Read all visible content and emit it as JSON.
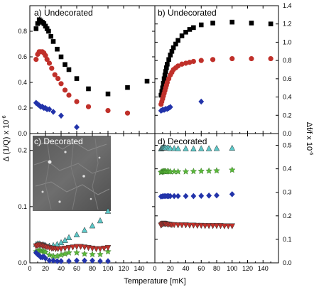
{
  "axes": {
    "xlabel": "Temperature [mK]",
    "ylabel_left": "Δ (1/Q) x 10",
    "ylabel_left_exp": "-6",
    "ylabel_right": "Δf/f x 10",
    "ylabel_right_exp": "-6"
  },
  "chart_data": [
    {
      "panel": "a",
      "label": "a) Undecorated",
      "type": "scatter",
      "xlim": [
        0,
        160
      ],
      "ylim": [
        0,
        1.0
      ],
      "xticks": [
        0,
        20,
        40,
        60,
        80,
        100,
        120,
        140
      ],
      "xticklabels_shown": false,
      "yticks": [
        0.0,
        0.2,
        0.4,
        0.6,
        0.8
      ],
      "yticklabels": [
        "0.0",
        "0.2",
        "0.4",
        "0.6",
        "0.8"
      ],
      "series": [
        {
          "marker": "square",
          "color": "#000000",
          "x": [
            8,
            10,
            12,
            14,
            16,
            18,
            20,
            22,
            24,
            27,
            30,
            35,
            40,
            45,
            50,
            60,
            75,
            100,
            125,
            150
          ],
          "y": [
            0.82,
            0.86,
            0.89,
            0.88,
            0.87,
            0.86,
            0.84,
            0.82,
            0.8,
            0.76,
            0.72,
            0.66,
            0.6,
            0.54,
            0.5,
            0.43,
            0.35,
            0.31,
            0.36,
            0.41
          ]
        },
        {
          "marker": "circle",
          "color": "#c0302a",
          "x": [
            8,
            10,
            12,
            14,
            16,
            18,
            20,
            22,
            25,
            28,
            32,
            36,
            40,
            45,
            50,
            60,
            75,
            100,
            125
          ],
          "y": [
            0.58,
            0.62,
            0.64,
            0.64,
            0.64,
            0.63,
            0.61,
            0.58,
            0.55,
            0.51,
            0.46,
            0.43,
            0.39,
            0.34,
            0.3,
            0.25,
            0.21,
            0.18,
            0.16
          ]
        },
        {
          "marker": "diamond",
          "color": "#2233aa",
          "x": [
            8,
            10,
            12,
            14,
            16,
            18,
            20,
            22,
            25,
            30,
            40,
            60
          ],
          "y": [
            0.24,
            0.23,
            0.22,
            0.21,
            0.21,
            0.2,
            0.2,
            0.19,
            0.19,
            0.17,
            0.14,
            0.05
          ]
        }
      ]
    },
    {
      "panel": "b",
      "label": "b) Undecorated",
      "type": "scatter",
      "xlim": [
        0,
        160
      ],
      "ylim": [
        0,
        1.4
      ],
      "xticks": [
        0,
        20,
        40,
        60,
        80,
        100,
        120,
        140
      ],
      "xticklabels_shown": false,
      "yticks": [
        0.0,
        0.2,
        0.4,
        0.6,
        0.8,
        1.0,
        1.2,
        1.4
      ],
      "yticklabels": [
        "0.0",
        "0.2",
        "0.4",
        "0.6",
        "0.8",
        "1.0",
        "1.2",
        "1.4"
      ],
      "series": [
        {
          "marker": "square",
          "color": "#000000",
          "x": [
            8,
            9,
            10,
            11,
            12,
            13,
            14,
            15,
            16,
            18,
            20,
            22,
            24,
            27,
            30,
            35,
            40,
            45,
            50,
            60,
            75,
            100,
            125,
            150
          ],
          "y": [
            0.42,
            0.46,
            0.5,
            0.55,
            0.6,
            0.64,
            0.68,
            0.72,
            0.76,
            0.81,
            0.86,
            0.9,
            0.94,
            0.98,
            1.02,
            1.07,
            1.11,
            1.14,
            1.16,
            1.19,
            1.21,
            1.22,
            1.21,
            1.2
          ]
        },
        {
          "marker": "circle",
          "color": "#c0302a",
          "x": [
            8,
            9,
            10,
            11,
            12,
            13,
            14,
            15,
            16,
            18,
            20,
            22,
            24,
            27,
            30,
            35,
            40,
            45,
            50,
            60,
            75,
            100,
            125,
            150
          ],
          "y": [
            0.32,
            0.35,
            0.38,
            0.41,
            0.44,
            0.47,
            0.5,
            0.53,
            0.56,
            0.6,
            0.64,
            0.67,
            0.7,
            0.72,
            0.74,
            0.76,
            0.77,
            0.78,
            0.79,
            0.8,
            0.81,
            0.82,
            0.82,
            0.82
          ]
        },
        {
          "marker": "diamond",
          "color": "#2233aa",
          "x": [
            8,
            10,
            12,
            14,
            16,
            18,
            20,
            60
          ],
          "y": [
            0.25,
            0.26,
            0.26,
            0.27,
            0.27,
            0.28,
            0.29,
            0.35
          ]
        }
      ]
    },
    {
      "panel": "c",
      "label": "c) Decorated",
      "type": "scatter",
      "xlim": [
        0,
        160
      ],
      "ylim": [
        0,
        0.23
      ],
      "xticks": [
        0,
        20,
        40,
        60,
        80,
        100,
        120,
        140
      ],
      "xticklabels": [
        "0",
        "20",
        "40",
        "60",
        "80",
        "100",
        "120",
        "140"
      ],
      "yticks": [
        0.0,
        0.1,
        0.2
      ],
      "yticklabels": [
        "0.0",
        "0.1",
        "0.2"
      ],
      "series": [
        {
          "marker": "triangle-up",
          "color": "#5cc8c8",
          "x": [
            8,
            10,
            12,
            14,
            16,
            18,
            20,
            25,
            30,
            35,
            40,
            45,
            50,
            60,
            70,
            80,
            90,
            100
          ],
          "y": [
            0.033,
            0.034,
            0.034,
            0.033,
            0.032,
            0.032,
            0.031,
            0.03,
            0.031,
            0.033,
            0.036,
            0.04,
            0.045,
            0.05,
            0.058,
            0.066,
            0.075,
            0.092
          ]
        },
        {
          "marker": "star",
          "color": "#5ab83a",
          "x": [
            8,
            10,
            12,
            14,
            16,
            18,
            20,
            25,
            30,
            35,
            40,
            45,
            50,
            60,
            70,
            80,
            90,
            100
          ],
          "y": [
            0.02,
            0.021,
            0.022,
            0.022,
            0.021,
            0.02,
            0.019,
            0.014,
            0.012,
            0.012,
            0.014,
            0.016,
            0.018,
            0.018,
            0.016,
            0.015,
            0.015,
            0.02
          ]
        },
        {
          "marker": "triangle-down",
          "color": "#c0302a",
          "x": [
            8,
            10,
            12,
            14,
            16,
            18,
            20,
            22,
            25,
            28,
            30,
            33,
            36,
            40,
            45,
            50,
            55,
            60,
            65,
            70,
            75,
            80,
            85,
            90,
            95,
            100
          ],
          "y": [
            0.03,
            0.031,
            0.032,
            0.032,
            0.031,
            0.03,
            0.029,
            0.028,
            0.027,
            0.026,
            0.026,
            0.025,
            0.025,
            0.025,
            0.026,
            0.027,
            0.028,
            0.029,
            0.029,
            0.028,
            0.027,
            0.026,
            0.025,
            0.025,
            0.026,
            0.027
          ]
        },
        {
          "marker": "diamond",
          "color": "#2233aa",
          "x": [
            8,
            10,
            12,
            14,
            16,
            18,
            20,
            25,
            30,
            35,
            40,
            50,
            60,
            70,
            80,
            90,
            100
          ],
          "y": [
            0.018,
            0.015,
            0.013,
            0.01,
            0.01,
            0.011,
            0.008,
            0.004,
            0.004,
            0.003,
            0.003,
            0.003,
            0.004,
            0.004,
            0.004,
            0.003,
            0.003
          ]
        }
      ]
    },
    {
      "panel": "d",
      "label": "d) Decorated",
      "type": "scatter",
      "xlim": [
        0,
        160
      ],
      "ylim": [
        0,
        0.55
      ],
      "xticks": [
        0,
        20,
        40,
        60,
        80,
        100,
        120,
        140
      ],
      "xticklabels": [
        "0",
        "20",
        "40",
        "60",
        "80",
        "100",
        "120",
        "140"
      ],
      "yticks": [
        0.0,
        0.1,
        0.2,
        0.3,
        0.4,
        0.5
      ],
      "yticklabels": [
        "0.0",
        "0.1",
        "0.2",
        "0.3",
        "0.4",
        "0.5"
      ],
      "series": [
        {
          "marker": "triangle-up",
          "color": "#5cc8c8",
          "x": [
            8,
            9,
            10,
            11,
            12,
            13,
            14,
            16,
            18,
            20,
            25,
            30,
            40,
            50,
            60,
            70,
            80,
            100
          ],
          "y": [
            0.485,
            0.488,
            0.489,
            0.49,
            0.49,
            0.49,
            0.489,
            0.489,
            0.488,
            0.487,
            0.487,
            0.486,
            0.486,
            0.485,
            0.486,
            0.486,
            0.487,
            0.488
          ]
        },
        {
          "marker": "star",
          "color": "#5ab83a",
          "x": [
            8,
            9,
            10,
            11,
            12,
            13,
            14,
            16,
            18,
            20,
            25,
            30,
            40,
            50,
            60,
            70,
            80,
            100
          ],
          "y": [
            0.385,
            0.387,
            0.388,
            0.389,
            0.389,
            0.389,
            0.389,
            0.389,
            0.388,
            0.388,
            0.388,
            0.388,
            0.388,
            0.389,
            0.39,
            0.391,
            0.392,
            0.395
          ]
        },
        {
          "marker": "diamond",
          "color": "#2233aa",
          "x": [
            8,
            10,
            12,
            14,
            16,
            18,
            20,
            25,
            30,
            40,
            50,
            60,
            70,
            80,
            100
          ],
          "y": [
            0.282,
            0.283,
            0.284,
            0.284,
            0.284,
            0.284,
            0.284,
            0.284,
            0.284,
            0.284,
            0.284,
            0.285,
            0.286,
            0.287,
            0.292
          ]
        },
        {
          "marker": "triangle-down",
          "color": "#c0302a",
          "x": [
            8,
            9,
            10,
            11,
            12,
            13,
            14,
            16,
            18,
            20,
            22,
            25,
            30,
            35,
            40,
            45,
            50,
            55,
            60,
            65,
            70,
            75,
            80,
            85,
            90,
            95,
            100
          ],
          "y": [
            0.16,
            0.163,
            0.166,
            0.168,
            0.168,
            0.167,
            0.166,
            0.165,
            0.164,
            0.163,
            0.162,
            0.162,
            0.161,
            0.161,
            0.161,
            0.16,
            0.16,
            0.159,
            0.159,
            0.158,
            0.158,
            0.158,
            0.158,
            0.158,
            0.157,
            0.157,
            0.157
          ]
        }
      ]
    }
  ]
}
